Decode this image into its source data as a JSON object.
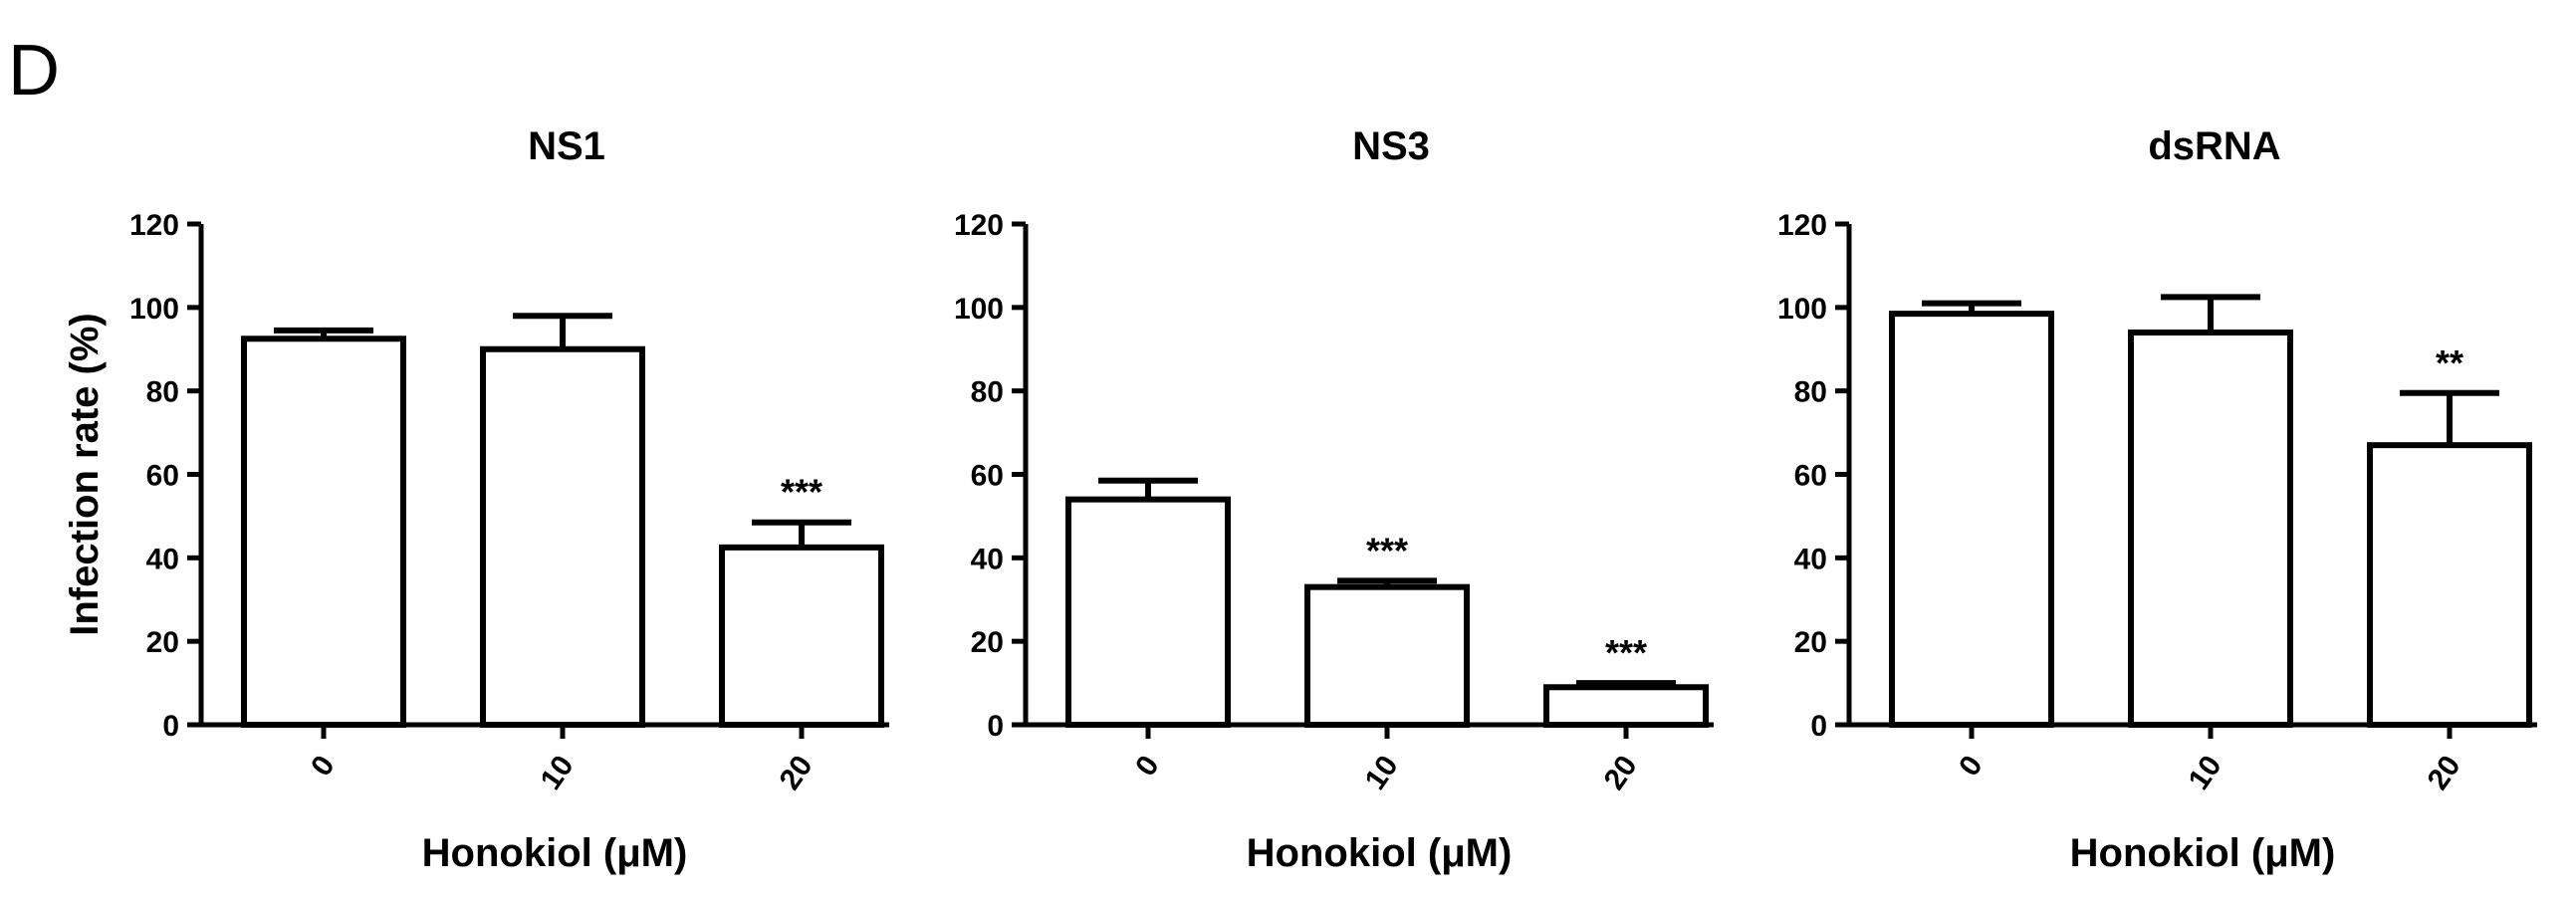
{
  "figure_label": "D",
  "chart_data": [
    {
      "type": "bar",
      "title": "NS1",
      "ylabel": "Infection rate (%)",
      "xlabel": "Honokiol (μM)",
      "categories": [
        "0",
        "10",
        "20"
      ],
      "values": [
        92.5,
        90,
        42.5
      ],
      "errors": [
        2,
        8,
        6
      ],
      "significance": [
        "",
        "",
        "***"
      ],
      "ylim": [
        0,
        120
      ],
      "yticks": [
        0,
        20,
        40,
        60,
        80,
        100,
        120
      ],
      "grid": false,
      "bar_color": "#ffffff",
      "edge_color": "#000000"
    },
    {
      "type": "bar",
      "title": "NS3",
      "ylabel": "",
      "xlabel": "Honokiol (μM)",
      "categories": [
        "0",
        "10",
        "20"
      ],
      "values": [
        54,
        33,
        9
      ],
      "errors": [
        4.5,
        1.5,
        1
      ],
      "significance": [
        "",
        "***",
        "***"
      ],
      "ylim": [
        0,
        120
      ],
      "yticks": [
        0,
        20,
        40,
        60,
        80,
        100,
        120
      ],
      "grid": false,
      "bar_color": "#ffffff",
      "edge_color": "#000000"
    },
    {
      "type": "bar",
      "title": "dsRNA",
      "ylabel": "",
      "xlabel": "Honokiol (μM)",
      "categories": [
        "0",
        "10",
        "20"
      ],
      "values": [
        98.5,
        94,
        67
      ],
      "errors": [
        2.5,
        8.5,
        12.5
      ],
      "significance": [
        "",
        "",
        "**"
      ],
      "ylim": [
        0,
        120
      ],
      "yticks": [
        0,
        20,
        40,
        60,
        80,
        100,
        120
      ],
      "grid": false,
      "bar_color": "#ffffff",
      "edge_color": "#000000"
    }
  ]
}
